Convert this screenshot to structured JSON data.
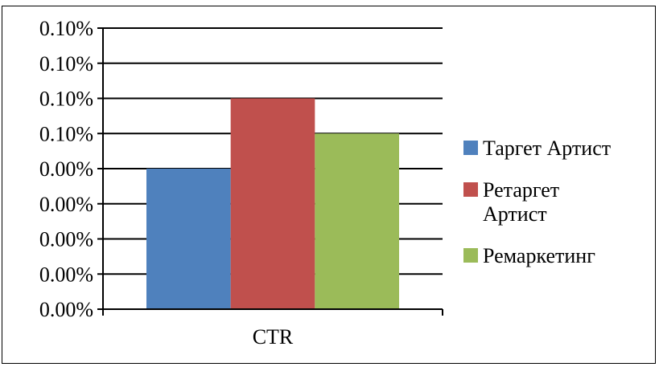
{
  "chart_data": {
    "type": "bar",
    "categories": [
      "CTR"
    ],
    "series": [
      {
        "name": "Таргет Артист",
        "values": [
          0.0008
        ],
        "color": "#4f81bd"
      },
      {
        "name": "Ретаргет Артист",
        "values": [
          0.0012
        ],
        "color": "#c0504d"
      },
      {
        "name": "Ремаркетинг",
        "values": [
          0.001
        ],
        "color": "#9bbb59"
      }
    ],
    "ylim": [
      0,
      0.0016
    ],
    "ytick_step": 0.0002,
    "ytick_labels": [
      "0.00%",
      "0.00%",
      "0.00%",
      "0.00%",
      "0.00%",
      "0.10%",
      "0.10%",
      "0.10%",
      "0.10%"
    ],
    "grid": true,
    "legend_position": "right",
    "legend_lines": [
      [
        "Таргет Артист"
      ],
      [
        "Ретаргет",
        "Артист"
      ],
      [
        "Ремаркетинг"
      ]
    ],
    "title": "",
    "xlabel": "",
    "ylabel": ""
  }
}
